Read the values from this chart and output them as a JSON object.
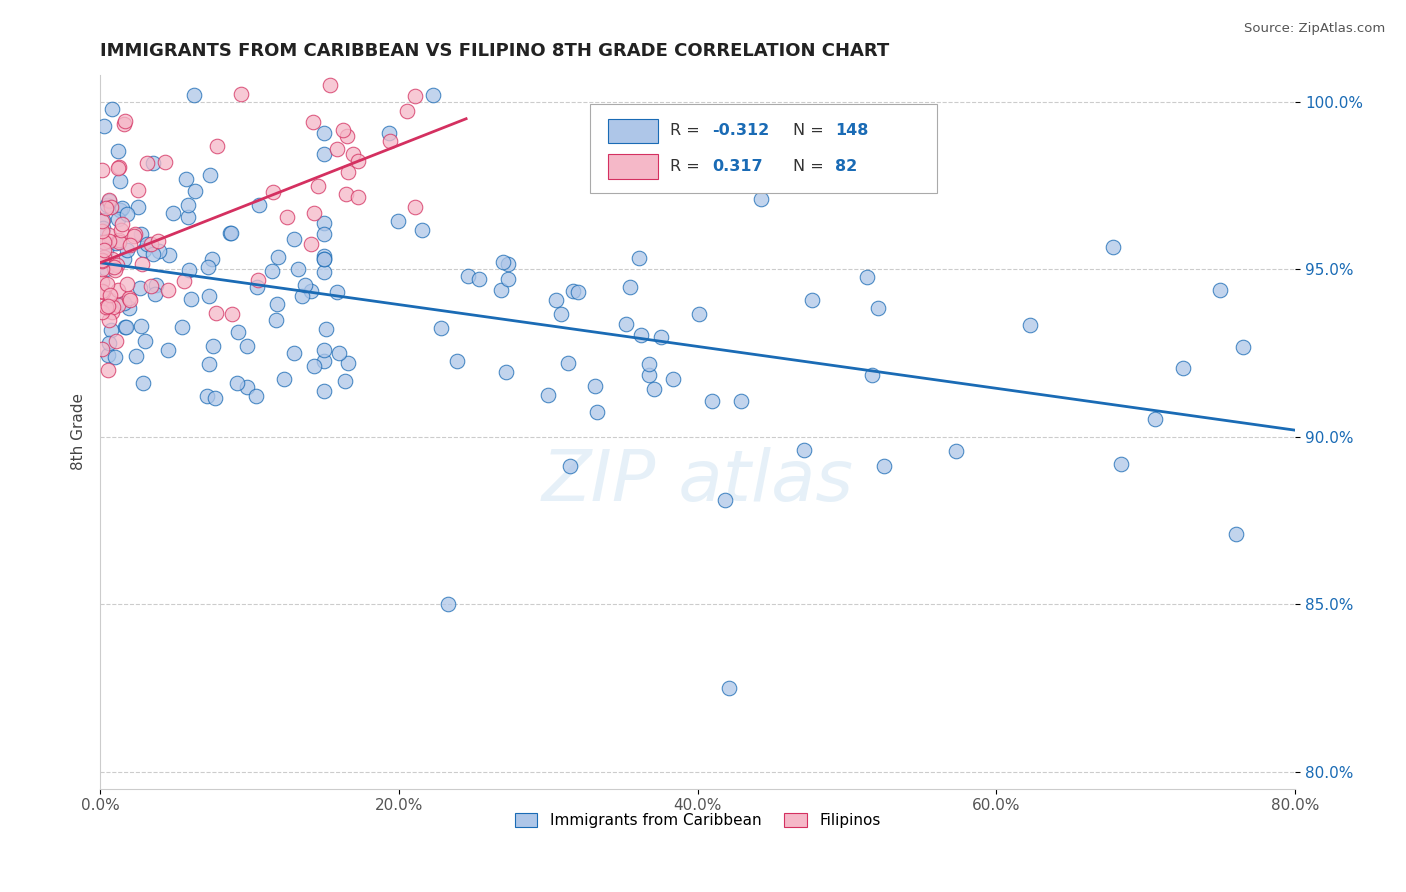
{
  "title": "IMMIGRANTS FROM CARIBBEAN VS FILIPINO 8TH GRADE CORRELATION CHART",
  "source": "Source: ZipAtlas.com",
  "ylabel": "8th Grade",
  "xlim": [
    0.0,
    0.8
  ],
  "ylim": [
    0.795,
    1.008
  ],
  "xtick_vals": [
    0.0,
    0.2,
    0.4,
    0.6,
    0.8
  ],
  "xtick_labels": [
    "0.0%",
    "20.0%",
    "40.0%",
    "60.0%",
    "80.0%"
  ],
  "ytick_vals": [
    0.8,
    0.85,
    0.9,
    0.95,
    1.0
  ],
  "ytick_labels": [
    "80.0%",
    "85.0%",
    "90.0%",
    "95.0%",
    "100.0%"
  ],
  "blue_R": -0.312,
  "blue_N": 148,
  "pink_R": 0.317,
  "pink_N": 82,
  "blue_color": "#aec6e8",
  "pink_color": "#f5b8c8",
  "blue_line_color": "#1a6bb5",
  "pink_line_color": "#d43060",
  "legend_blue_label": "Immigrants from Caribbean",
  "legend_pink_label": "Filipinos",
  "blue_line_x0": 0.0,
  "blue_line_y0": 0.952,
  "blue_line_x1": 0.8,
  "blue_line_y1": 0.902,
  "pink_line_x0": 0.0,
  "pink_line_y0": 0.952,
  "pink_line_x1": 0.245,
  "pink_line_y1": 0.995,
  "seed": 42
}
